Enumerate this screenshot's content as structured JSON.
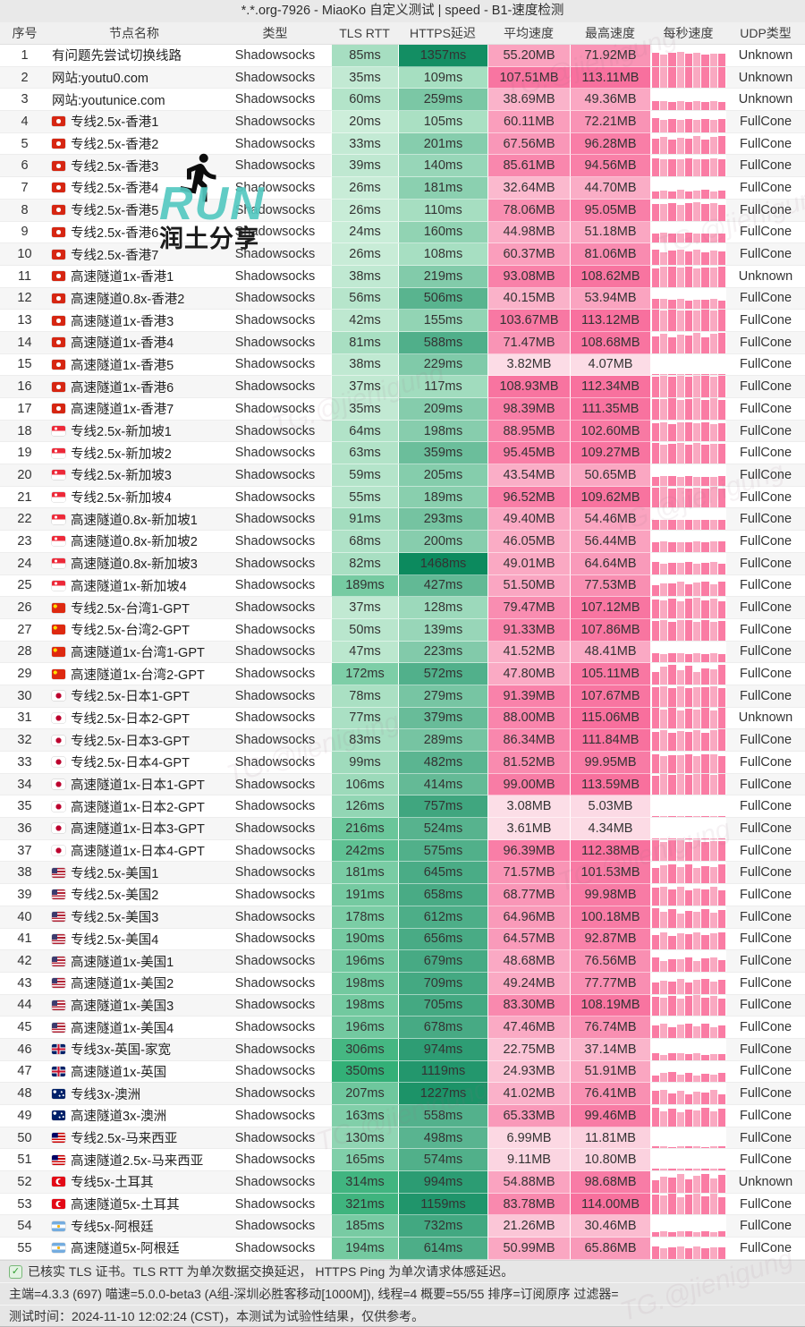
{
  "title": "*.*.org-7926 - MiaoKo 自定义测试 | speed - B1-速度检测",
  "columns": [
    "序号",
    "节点名称",
    "类型",
    "TLS RTT",
    "HTTPS延迟",
    "平均速度",
    "最高速度",
    "每秒速度",
    "UDP类型"
  ],
  "watermark": {
    "run_text": "RUN",
    "share_text": "润土分享",
    "diagonal_text": "TG.@jienigung"
  },
  "footer": {
    "line1": "已核实 TLS 证书。TLS RTT 为单次数据交换延迟， HTTPS Ping 为单次请求体感延迟。",
    "line2": "主端=4.3.3 (697) 喵速=5.0.0-beta3 (A组-深圳必胜客移动[1000M]), 线程=4 概要=55/55 排序=订阅原序 过滤器=",
    "line3": "测试时间：2024-11-10 12:02:24 (CST)，本测试为试验性结果，仅供参考。"
  },
  "colors": {
    "tls_light": "#cdeeda",
    "tls_dark": "#2fae74",
    "https_light": "#b4e6ca",
    "https_dark": "#0c8a5e",
    "speed_light": "#fce4eb",
    "speed_dark": "#f86e9c",
    "bar_pink": "#fa7ca4",
    "bar_pink_light": "#f9a9c1",
    "watermark_teal": "#54c8c0"
  },
  "chart_data": {
    "type": "table",
    "rows": [
      {
        "no": 1,
        "flag": "",
        "name": "有问题先尝试切换线路",
        "type": "Shadowsocks",
        "tls": "85ms",
        "https": "1357ms",
        "avg": "55.20MB",
        "max": "71.92MB",
        "udp": "Unknown"
      },
      {
        "no": 2,
        "flag": "",
        "name": "网站:youtu0.com",
        "type": "Shadowsocks",
        "tls": "35ms",
        "https": "109ms",
        "avg": "107.51MB",
        "max": "113.11MB",
        "udp": "Unknown"
      },
      {
        "no": 3,
        "flag": "",
        "name": "网站:youtunice.com",
        "type": "Shadowsocks",
        "tls": "60ms",
        "https": "259ms",
        "avg": "38.69MB",
        "max": "49.36MB",
        "udp": "Unknown"
      },
      {
        "no": 4,
        "flag": "hk",
        "name": "专线2.5x-香港1",
        "type": "Shadowsocks",
        "tls": "20ms",
        "https": "105ms",
        "avg": "60.11MB",
        "max": "72.21MB",
        "udp": "FullCone"
      },
      {
        "no": 5,
        "flag": "hk",
        "name": "专线2.5x-香港2",
        "type": "Shadowsocks",
        "tls": "33ms",
        "https": "201ms",
        "avg": "67.56MB",
        "max": "96.28MB",
        "udp": "FullCone"
      },
      {
        "no": 6,
        "flag": "hk",
        "name": "专线2.5x-香港3",
        "type": "Shadowsocks",
        "tls": "39ms",
        "https": "140ms",
        "avg": "85.61MB",
        "max": "94.56MB",
        "udp": "FullCone"
      },
      {
        "no": 7,
        "flag": "hk",
        "name": "专线2.5x-香港4",
        "type": "Shadowsocks",
        "tls": "26ms",
        "https": "181ms",
        "avg": "32.64MB",
        "max": "44.70MB",
        "udp": "FullCone"
      },
      {
        "no": 8,
        "flag": "hk",
        "name": "专线2.5x-香港5",
        "type": "Shadowsocks",
        "tls": "26ms",
        "https": "110ms",
        "avg": "78.06MB",
        "max": "95.05MB",
        "udp": "FullCone"
      },
      {
        "no": 9,
        "flag": "hk",
        "name": "专线2.5x-香港6",
        "type": "Shadowsocks",
        "tls": "24ms",
        "https": "160ms",
        "avg": "44.98MB",
        "max": "51.18MB",
        "udp": "FullCone"
      },
      {
        "no": 10,
        "flag": "hk",
        "name": "专线2.5x-香港7",
        "type": "Shadowsocks",
        "tls": "26ms",
        "https": "108ms",
        "avg": "60.37MB",
        "max": "81.06MB",
        "udp": "FullCone"
      },
      {
        "no": 11,
        "flag": "hk",
        "name": "高速隧道1x-香港1",
        "type": "Shadowsocks",
        "tls": "38ms",
        "https": "219ms",
        "avg": "93.08MB",
        "max": "108.62MB",
        "udp": "Unknown"
      },
      {
        "no": 12,
        "flag": "hk",
        "name": "高速隧道0.8x-香港2",
        "type": "Shadowsocks",
        "tls": "56ms",
        "https": "506ms",
        "avg": "40.15MB",
        "max": "53.94MB",
        "udp": "FullCone"
      },
      {
        "no": 13,
        "flag": "hk",
        "name": "高速隧道1x-香港3",
        "type": "Shadowsocks",
        "tls": "42ms",
        "https": "155ms",
        "avg": "103.67MB",
        "max": "113.12MB",
        "udp": "FullCone"
      },
      {
        "no": 14,
        "flag": "hk",
        "name": "高速隧道1x-香港4",
        "type": "Shadowsocks",
        "tls": "81ms",
        "https": "588ms",
        "avg": "71.47MB",
        "max": "108.68MB",
        "udp": "FullCone"
      },
      {
        "no": 15,
        "flag": "hk",
        "name": "高速隧道1x-香港5",
        "type": "Shadowsocks",
        "tls": "38ms",
        "https": "229ms",
        "avg": "3.82MB",
        "max": "4.07MB",
        "udp": "FullCone"
      },
      {
        "no": 16,
        "flag": "hk",
        "name": "高速隧道1x-香港6",
        "type": "Shadowsocks",
        "tls": "37ms",
        "https": "117ms",
        "avg": "108.93MB",
        "max": "112.34MB",
        "udp": "FullCone"
      },
      {
        "no": 17,
        "flag": "hk",
        "name": "高速隧道1x-香港7",
        "type": "Shadowsocks",
        "tls": "35ms",
        "https": "209ms",
        "avg": "98.39MB",
        "max": "111.35MB",
        "udp": "FullCone"
      },
      {
        "no": 18,
        "flag": "sg",
        "name": "专线2.5x-新加坡1",
        "type": "Shadowsocks",
        "tls": "64ms",
        "https": "198ms",
        "avg": "88.95MB",
        "max": "102.60MB",
        "udp": "FullCone"
      },
      {
        "no": 19,
        "flag": "sg",
        "name": "专线2.5x-新加坡2",
        "type": "Shadowsocks",
        "tls": "63ms",
        "https": "359ms",
        "avg": "95.45MB",
        "max": "109.27MB",
        "udp": "FullCone"
      },
      {
        "no": 20,
        "flag": "sg",
        "name": "专线2.5x-新加坡3",
        "type": "Shadowsocks",
        "tls": "59ms",
        "https": "205ms",
        "avg": "43.54MB",
        "max": "50.65MB",
        "udp": "FullCone"
      },
      {
        "no": 21,
        "flag": "sg",
        "name": "专线2.5x-新加坡4",
        "type": "Shadowsocks",
        "tls": "55ms",
        "https": "189ms",
        "avg": "96.52MB",
        "max": "109.62MB",
        "udp": "FullCone"
      },
      {
        "no": 22,
        "flag": "sg",
        "name": "高速隧道0.8x-新加坡1",
        "type": "Shadowsocks",
        "tls": "91ms",
        "https": "293ms",
        "avg": "49.40MB",
        "max": "54.46MB",
        "udp": "FullCone"
      },
      {
        "no": 23,
        "flag": "sg",
        "name": "高速隧道0.8x-新加坡2",
        "type": "Shadowsocks",
        "tls": "68ms",
        "https": "200ms",
        "avg": "46.05MB",
        "max": "56.44MB",
        "udp": "FullCone"
      },
      {
        "no": 24,
        "flag": "sg",
        "name": "高速隧道0.8x-新加坡3",
        "type": "Shadowsocks",
        "tls": "82ms",
        "https": "1468ms",
        "avg": "49.01MB",
        "max": "64.64MB",
        "udp": "FullCone"
      },
      {
        "no": 25,
        "flag": "sg",
        "name": "高速隧道1x-新加坡4",
        "type": "Shadowsocks",
        "tls": "189ms",
        "https": "427ms",
        "avg": "51.50MB",
        "max": "77.53MB",
        "udp": "FullCone"
      },
      {
        "no": 26,
        "flag": "cn",
        "name": "专线2.5x-台湾1-GPT",
        "type": "Shadowsocks",
        "tls": "37ms",
        "https": "128ms",
        "avg": "79.47MB",
        "max": "107.12MB",
        "udp": "FullCone"
      },
      {
        "no": 27,
        "flag": "cn",
        "name": "专线2.5x-台湾2-GPT",
        "type": "Shadowsocks",
        "tls": "50ms",
        "https": "139ms",
        "avg": "91.33MB",
        "max": "107.86MB",
        "udp": "FullCone"
      },
      {
        "no": 28,
        "flag": "cn",
        "name": "高速隧道1x-台湾1-GPT",
        "type": "Shadowsocks",
        "tls": "47ms",
        "https": "223ms",
        "avg": "41.52MB",
        "max": "48.41MB",
        "udp": "FullCone"
      },
      {
        "no": 29,
        "flag": "cn",
        "name": "高速隧道1x-台湾2-GPT",
        "type": "Shadowsocks",
        "tls": "172ms",
        "https": "572ms",
        "avg": "47.80MB",
        "max": "105.11MB",
        "udp": "FullCone"
      },
      {
        "no": 30,
        "flag": "jp",
        "name": "专线2.5x-日本1-GPT",
        "type": "Shadowsocks",
        "tls": "78ms",
        "https": "279ms",
        "avg": "91.39MB",
        "max": "107.67MB",
        "udp": "FullCone"
      },
      {
        "no": 31,
        "flag": "jp",
        "name": "专线2.5x-日本2-GPT",
        "type": "Shadowsocks",
        "tls": "77ms",
        "https": "379ms",
        "avg": "88.00MB",
        "max": "115.06MB",
        "udp": "Unknown"
      },
      {
        "no": 32,
        "flag": "jp",
        "name": "专线2.5x-日本3-GPT",
        "type": "Shadowsocks",
        "tls": "83ms",
        "https": "289ms",
        "avg": "86.34MB",
        "max": "111.84MB",
        "udp": "FullCone"
      },
      {
        "no": 33,
        "flag": "jp",
        "name": "专线2.5x-日本4-GPT",
        "type": "Shadowsocks",
        "tls": "99ms",
        "https": "482ms",
        "avg": "81.52MB",
        "max": "99.95MB",
        "udp": "FullCone"
      },
      {
        "no": 34,
        "flag": "jp",
        "name": "高速隧道1x-日本1-GPT",
        "type": "Shadowsocks",
        "tls": "106ms",
        "https": "414ms",
        "avg": "99.00MB",
        "max": "113.59MB",
        "udp": "FullCone"
      },
      {
        "no": 35,
        "flag": "jp",
        "name": "高速隧道1x-日本2-GPT",
        "type": "Shadowsocks",
        "tls": "126ms",
        "https": "757ms",
        "avg": "3.08MB",
        "max": "5.03MB",
        "udp": "FullCone"
      },
      {
        "no": 36,
        "flag": "jp",
        "name": "高速隧道1x-日本3-GPT",
        "type": "Shadowsocks",
        "tls": "216ms",
        "https": "524ms",
        "avg": "3.61MB",
        "max": "4.34MB",
        "udp": "FullCone"
      },
      {
        "no": 37,
        "flag": "jp",
        "name": "高速隧道1x-日本4-GPT",
        "type": "Shadowsocks",
        "tls": "242ms",
        "https": "575ms",
        "avg": "96.39MB",
        "max": "112.38MB",
        "udp": "FullCone"
      },
      {
        "no": 38,
        "flag": "us",
        "name": "专线2.5x-美国1",
        "type": "Shadowsocks",
        "tls": "181ms",
        "https": "645ms",
        "avg": "71.57MB",
        "max": "101.53MB",
        "udp": "FullCone"
      },
      {
        "no": 39,
        "flag": "us",
        "name": "专线2.5x-美国2",
        "type": "Shadowsocks",
        "tls": "191ms",
        "https": "658ms",
        "avg": "68.77MB",
        "max": "99.98MB",
        "udp": "FullCone"
      },
      {
        "no": 40,
        "flag": "us",
        "name": "专线2.5x-美国3",
        "type": "Shadowsocks",
        "tls": "178ms",
        "https": "612ms",
        "avg": "64.96MB",
        "max": "100.18MB",
        "udp": "FullCone"
      },
      {
        "no": 41,
        "flag": "us",
        "name": "专线2.5x-美国4",
        "type": "Shadowsocks",
        "tls": "190ms",
        "https": "656ms",
        "avg": "64.57MB",
        "max": "92.87MB",
        "udp": "FullCone"
      },
      {
        "no": 42,
        "flag": "us",
        "name": "高速隧道1x-美国1",
        "type": "Shadowsocks",
        "tls": "196ms",
        "https": "679ms",
        "avg": "48.68MB",
        "max": "76.56MB",
        "udp": "FullCone"
      },
      {
        "no": 43,
        "flag": "us",
        "name": "高速隧道1x-美国2",
        "type": "Shadowsocks",
        "tls": "198ms",
        "https": "709ms",
        "avg": "49.24MB",
        "max": "77.77MB",
        "udp": "FullCone"
      },
      {
        "no": 44,
        "flag": "us",
        "name": "高速隧道1x-美国3",
        "type": "Shadowsocks",
        "tls": "198ms",
        "https": "705ms",
        "avg": "83.30MB",
        "max": "108.19MB",
        "udp": "FullCone"
      },
      {
        "no": 45,
        "flag": "us",
        "name": "高速隧道1x-美国4",
        "type": "Shadowsocks",
        "tls": "196ms",
        "https": "678ms",
        "avg": "47.46MB",
        "max": "76.74MB",
        "udp": "FullCone"
      },
      {
        "no": 46,
        "flag": "gb",
        "name": "专线3x-英国-家宽",
        "type": "Shadowsocks",
        "tls": "306ms",
        "https": "974ms",
        "avg": "22.75MB",
        "max": "37.14MB",
        "udp": "FullCone"
      },
      {
        "no": 47,
        "flag": "gb",
        "name": "高速隧道1x-英国",
        "type": "Shadowsocks",
        "tls": "350ms",
        "https": "1119ms",
        "avg": "24.93MB",
        "max": "51.91MB",
        "udp": "FullCone"
      },
      {
        "no": 48,
        "flag": "au",
        "name": "专线3x-澳洲",
        "type": "Shadowsocks",
        "tls": "207ms",
        "https": "1227ms",
        "avg": "41.02MB",
        "max": "76.41MB",
        "udp": "FullCone"
      },
      {
        "no": 49,
        "flag": "au",
        "name": "高速隧道3x-澳洲",
        "type": "Shadowsocks",
        "tls": "163ms",
        "https": "558ms",
        "avg": "65.33MB",
        "max": "99.46MB",
        "udp": "FullCone"
      },
      {
        "no": 50,
        "flag": "my",
        "name": "专线2.5x-马来西亚",
        "type": "Shadowsocks",
        "tls": "130ms",
        "https": "498ms",
        "avg": "6.99MB",
        "max": "11.81MB",
        "udp": "FullCone"
      },
      {
        "no": 51,
        "flag": "my",
        "name": "高速隧道2.5x-马来西亚",
        "type": "Shadowsocks",
        "tls": "165ms",
        "https": "574ms",
        "avg": "9.11MB",
        "max": "10.80MB",
        "udp": "FullCone"
      },
      {
        "no": 52,
        "flag": "tr",
        "name": "专线5x-土耳其",
        "type": "Shadowsocks",
        "tls": "314ms",
        "https": "994ms",
        "avg": "54.88MB",
        "max": "98.68MB",
        "udp": "Unknown"
      },
      {
        "no": 53,
        "flag": "tr",
        "name": "高速隧道5x-土耳其",
        "type": "Shadowsocks",
        "tls": "321ms",
        "https": "1159ms",
        "avg": "83.78MB",
        "max": "114.00MB",
        "udp": "FullCone"
      },
      {
        "no": 54,
        "flag": "ar",
        "name": "专线5x-阿根廷",
        "type": "Shadowsocks",
        "tls": "185ms",
        "https": "732ms",
        "avg": "21.26MB",
        "max": "30.46MB",
        "udp": "FullCone"
      },
      {
        "no": 55,
        "flag": "ar",
        "name": "高速隧道5x-阿根廷",
        "type": "Shadowsocks",
        "tls": "194ms",
        "https": "614ms",
        "avg": "50.99MB",
        "max": "65.86MB",
        "udp": "FullCone"
      }
    ]
  }
}
